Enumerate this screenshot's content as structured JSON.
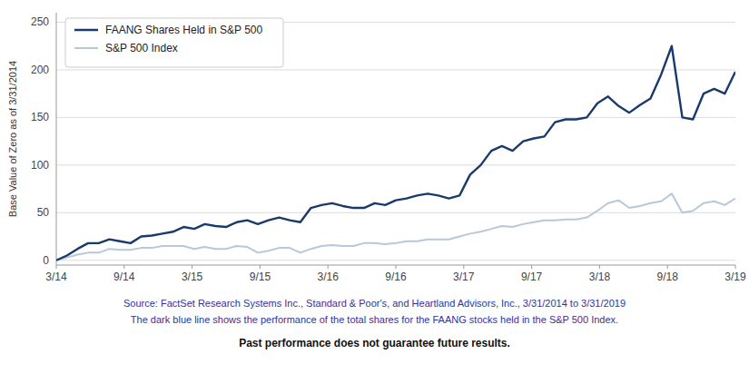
{
  "chart_data": {
    "type": "line",
    "x": [
      0,
      0.9375,
      1.875,
      2.8125,
      3.75,
      4.6875,
      5.625,
      6.5625,
      7.5,
      8.4375,
      9.375,
      10.3125,
      11.25,
      12.1875,
      13.125,
      14.0625,
      15,
      15.9375,
      16.875,
      17.8125,
      18.75,
      19.6875,
      20.625,
      21.5625,
      22.5,
      23.4375,
      24.375,
      25.3125,
      26.25,
      27.1875,
      28.125,
      29.0625,
      30,
      30.9375,
      31.875,
      32.8125,
      33.75,
      34.6875,
      35.625,
      36.5625,
      37.5,
      38.4375,
      39.375,
      40.3125,
      41.25,
      42.1875,
      43.125,
      44.0625,
      45,
      45.9375,
      46.875,
      47.8125,
      48.75,
      49.6875,
      50.625,
      51.5625,
      52.5,
      53.4375,
      54.375,
      55.3125,
      56.25,
      57.1875,
      58.125,
      59.0625,
      60
    ],
    "series": [
      {
        "name": "FAANG Shares Held in S&P 500",
        "color": "#1a3a6b",
        "values": [
          0,
          5,
          12,
          18,
          18,
          22,
          20,
          18,
          25,
          26,
          28,
          30,
          35,
          33,
          38,
          36,
          35,
          40,
          42,
          38,
          42,
          45,
          42,
          40,
          55,
          58,
          60,
          57,
          55,
          55,
          60,
          58,
          63,
          65,
          68,
          70,
          68,
          65,
          68,
          90,
          100,
          115,
          120,
          115,
          125,
          128,
          130,
          145,
          148,
          148,
          150,
          165,
          172,
          162,
          155,
          163,
          170,
          195,
          225,
          150,
          148,
          175,
          180,
          175,
          198
        ]
      },
      {
        "name": "S&P 500 Index",
        "color": "#b8c8d8",
        "values": [
          0,
          3,
          6,
          8,
          8,
          12,
          11,
          11,
          13,
          13,
          15,
          15,
          15,
          12,
          14,
          12,
          12,
          15,
          14,
          8,
          10,
          13,
          13,
          8,
          12,
          15,
          16,
          15,
          15,
          18,
          18,
          17,
          18,
          20,
          20,
          22,
          22,
          22,
          25,
          28,
          30,
          33,
          36,
          35,
          38,
          40,
          42,
          42,
          43,
          43,
          45,
          52,
          60,
          63,
          55,
          57,
          60,
          62,
          70,
          50,
          52,
          60,
          62,
          58,
          65
        ]
      }
    ],
    "xlim": [
      0,
      60
    ],
    "xticks": [
      {
        "value": 0,
        "label": "3/14"
      },
      {
        "value": 6,
        "label": "9/14"
      },
      {
        "value": 12,
        "label": "3/15"
      },
      {
        "value": 18,
        "label": "9/15"
      },
      {
        "value": 24,
        "label": "3/16"
      },
      {
        "value": 30,
        "label": "9/16"
      },
      {
        "value": 36,
        "label": "3/17"
      },
      {
        "value": 42,
        "label": "9/17"
      },
      {
        "value": 48,
        "label": "3/18"
      },
      {
        "value": 54,
        "label": "9/18"
      },
      {
        "value": 60,
        "label": "3/19"
      }
    ],
    "ylim": [
      -5,
      260
    ],
    "yticks": [
      0,
      50,
      100,
      150,
      200,
      250
    ],
    "y_label": "Base Value of Zero as of 3/31/2014",
    "annotations": [
      "Source: FactSet Research Systems Inc., Standard & Poor's, and Heartland Advisors, Inc.,  3/31/2014 to 3/31/2019",
      "The dark blue line shows the performance of the total shares for the FAANG  stocks held in the S&P 500 Index.",
      "Past performance does not guarantee future results."
    ],
    "grid": "y",
    "legend": "upper left"
  }
}
